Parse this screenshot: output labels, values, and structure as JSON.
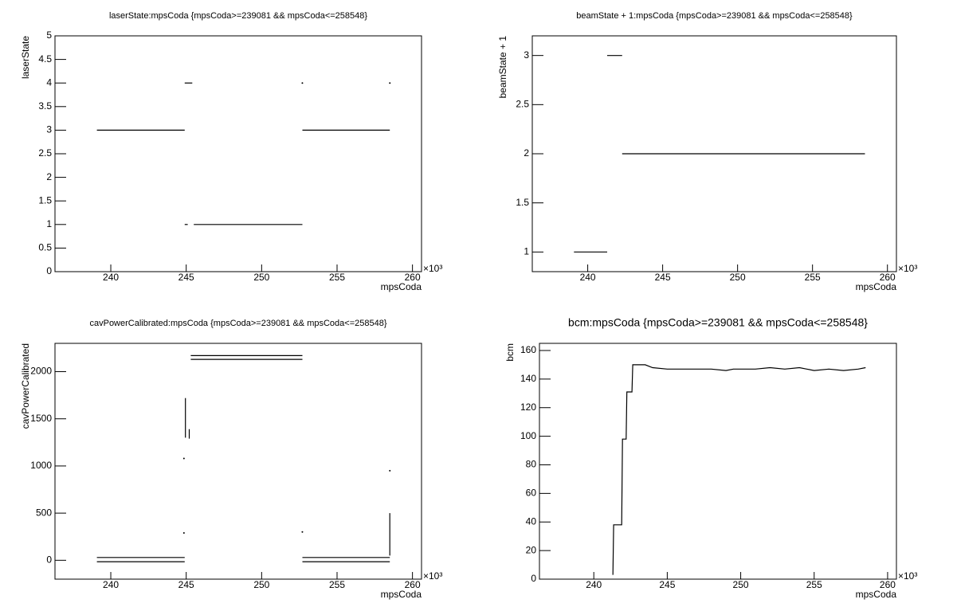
{
  "chart_data": [
    {
      "type": "line",
      "title": "laserState:mpsCoda {mpsCoda>=239081 && mpsCoda<=258548}",
      "x_label": "mpsCoda",
      "y_label": "laserState",
      "x_multiplier": "×10³",
      "x": [
        239.08,
        244.9,
        null,
        244.9,
        245.4,
        null,
        244.9,
        245.1,
        null,
        245.5,
        252.7,
        null,
        252.7,
        null,
        252.7,
        258.5,
        null,
        258.5
      ],
      "values": [
        3,
        3,
        null,
        4,
        4,
        null,
        1,
        1,
        null,
        1,
        1,
        null,
        4,
        null,
        3,
        3,
        null,
        4
      ],
      "color": "#000000",
      "xlim": [
        236.3,
        260.6
      ],
      "xticks": [
        240,
        245,
        250,
        255,
        260
      ],
      "ylim": [
        0,
        5
      ],
      "yticks": [
        0,
        0.5,
        1,
        1.5,
        2,
        2.5,
        3,
        3.5,
        4,
        4.5,
        5
      ]
    },
    {
      "type": "line",
      "title": "beamState + 1:mpsCoda {mpsCoda>=239081 && mpsCoda<=258548}",
      "x_label": "mpsCoda",
      "y_label": "beamState + 1",
      "x_multiplier": "×10³",
      "x": [
        239.08,
        241.3,
        null,
        241.3,
        242.3,
        null,
        242.3,
        258.5
      ],
      "values": [
        1,
        1,
        null,
        3,
        3,
        null,
        2,
        2
      ],
      "color": "#000000",
      "xlim": [
        236.3,
        260.6
      ],
      "xticks": [
        240,
        245,
        250,
        255,
        260
      ],
      "ylim": [
        0.8,
        3.2
      ],
      "yticks": [
        1,
        1.5,
        2,
        2.5,
        3
      ]
    },
    {
      "type": "line",
      "title": "cavPowerCalibrated:mpsCoda {mpsCoda>=239081 && mpsCoda<=258548}",
      "x_label": "mpsCoda",
      "y_label": "cavPowerCalibrated",
      "x_multiplier": "×10³",
      "x": [
        239.08,
        244.9,
        null,
        239.08,
        244.9,
        null,
        244.95,
        244.95,
        null,
        245.2,
        245.2,
        null,
        245.3,
        252.7,
        null,
        245.3,
        252.7,
        null,
        252.7,
        258.5,
        null,
        252.7,
        258.5,
        null,
        244.85,
        null,
        244.85,
        null,
        252.7,
        null,
        258.5,
        258.5,
        null,
        258.5
      ],
      "values": [
        30,
        30,
        null,
        -15,
        -15,
        null,
        1300,
        1720,
        null,
        1290,
        1390,
        null,
        2170,
        2170,
        null,
        2130,
        2130,
        null,
        30,
        30,
        null,
        -15,
        -15,
        null,
        1080,
        null,
        290,
        null,
        300,
        null,
        50,
        500,
        null,
        950
      ],
      "color": "#000000",
      "xlim": [
        236.3,
        260.6
      ],
      "xticks": [
        240,
        245,
        250,
        255,
        260
      ],
      "ylim": [
        -200,
        2300
      ],
      "yticks": [
        0,
        500,
        1000,
        1500,
        2000
      ]
    },
    {
      "type": "line",
      "title": "bcm:mpsCoda {mpsCoda>=239081 && mpsCoda<=258548}",
      "x_label": "mpsCoda",
      "y_label": "bcm",
      "x_multiplier": "×10³",
      "x": [
        241.3,
        241.35,
        241.4,
        241.9,
        241.95,
        242.2,
        242.25,
        242.6,
        242.65,
        243.5,
        244,
        245,
        246,
        247,
        248,
        249,
        249.5,
        250,
        251,
        252,
        253,
        254,
        254.5,
        255,
        256,
        257,
        258,
        258.5
      ],
      "values": [
        3,
        38,
        38,
        38,
        98,
        98,
        131,
        131,
        150,
        150,
        148,
        147,
        147,
        147,
        147,
        146,
        147,
        147,
        147,
        148,
        147,
        148,
        147,
        146,
        147,
        146,
        147,
        148
      ],
      "color": "#000000",
      "xlim": [
        236.3,
        260.6
      ],
      "xticks": [
        240,
        245,
        250,
        255,
        260
      ],
      "ylim": [
        0,
        165
      ],
      "yticks": [
        0,
        20,
        40,
        60,
        80,
        100,
        120,
        140,
        160
      ]
    }
  ]
}
